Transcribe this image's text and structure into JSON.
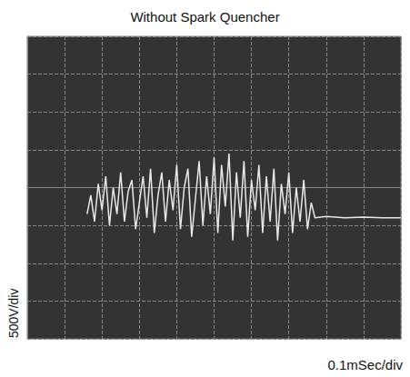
{
  "chart_data": {
    "type": "line",
    "title": "Without Spark Quencher",
    "x_label": "0.1mSec/div",
    "y_label": "500V/div",
    "x": [
      0.16,
      0.17,
      0.18,
      0.19,
      0.2,
      0.21,
      0.22,
      0.23,
      0.24,
      0.25,
      0.26,
      0.27,
      0.28,
      0.29,
      0.3,
      0.31,
      0.32,
      0.33,
      0.34,
      0.35,
      0.36,
      0.37,
      0.38,
      0.39,
      0.4,
      0.41,
      0.42,
      0.43,
      0.44,
      0.45,
      0.46,
      0.47,
      0.48,
      0.49,
      0.5,
      0.51,
      0.52,
      0.53,
      0.54,
      0.55,
      0.56,
      0.57,
      0.58,
      0.59,
      0.6,
      0.61,
      0.62,
      0.63,
      0.64,
      0.65,
      0.66,
      0.67,
      0.68,
      0.69,
      0.7,
      0.71,
      0.72,
      0.73,
      0.74,
      0.75,
      0.76,
      0.77,
      0.8,
      0.85,
      0.9,
      0.95,
      1.0
    ],
    "values": [
      -350,
      -100,
      -450,
      50,
      -300,
      150,
      -500,
      0,
      -350,
      200,
      -450,
      -50,
      100,
      -550,
      -200,
      150,
      -400,
      250,
      -600,
      -100,
      200,
      -450,
      100,
      -300,
      300,
      -550,
      0,
      250,
      -650,
      -150,
      350,
      -500,
      150,
      -350,
      400,
      -600,
      300,
      -250,
      450,
      -700,
      200,
      -400,
      350,
      -650,
      100,
      -300,
      300,
      -600,
      150,
      -450,
      250,
      -700,
      50,
      -350,
      200,
      -600,
      0,
      -450,
      100,
      -550,
      -200,
      -400,
      -380,
      -400,
      -390,
      -400,
      -400
    ],
    "color": "#e8e8e8",
    "xlim": [
      0,
      1
    ],
    "xticks": [
      0,
      0.1,
      0.2,
      0.3,
      0.4,
      0.5,
      0.6,
      0.7,
      0.8,
      0.9,
      1
    ],
    "ylim": [
      -2000,
      2000
    ],
    "yticks": [
      -2000,
      -1500,
      -1000,
      -500,
      0,
      500,
      1000,
      1500,
      2000
    ],
    "grid": true,
    "tick_labels": false
  }
}
